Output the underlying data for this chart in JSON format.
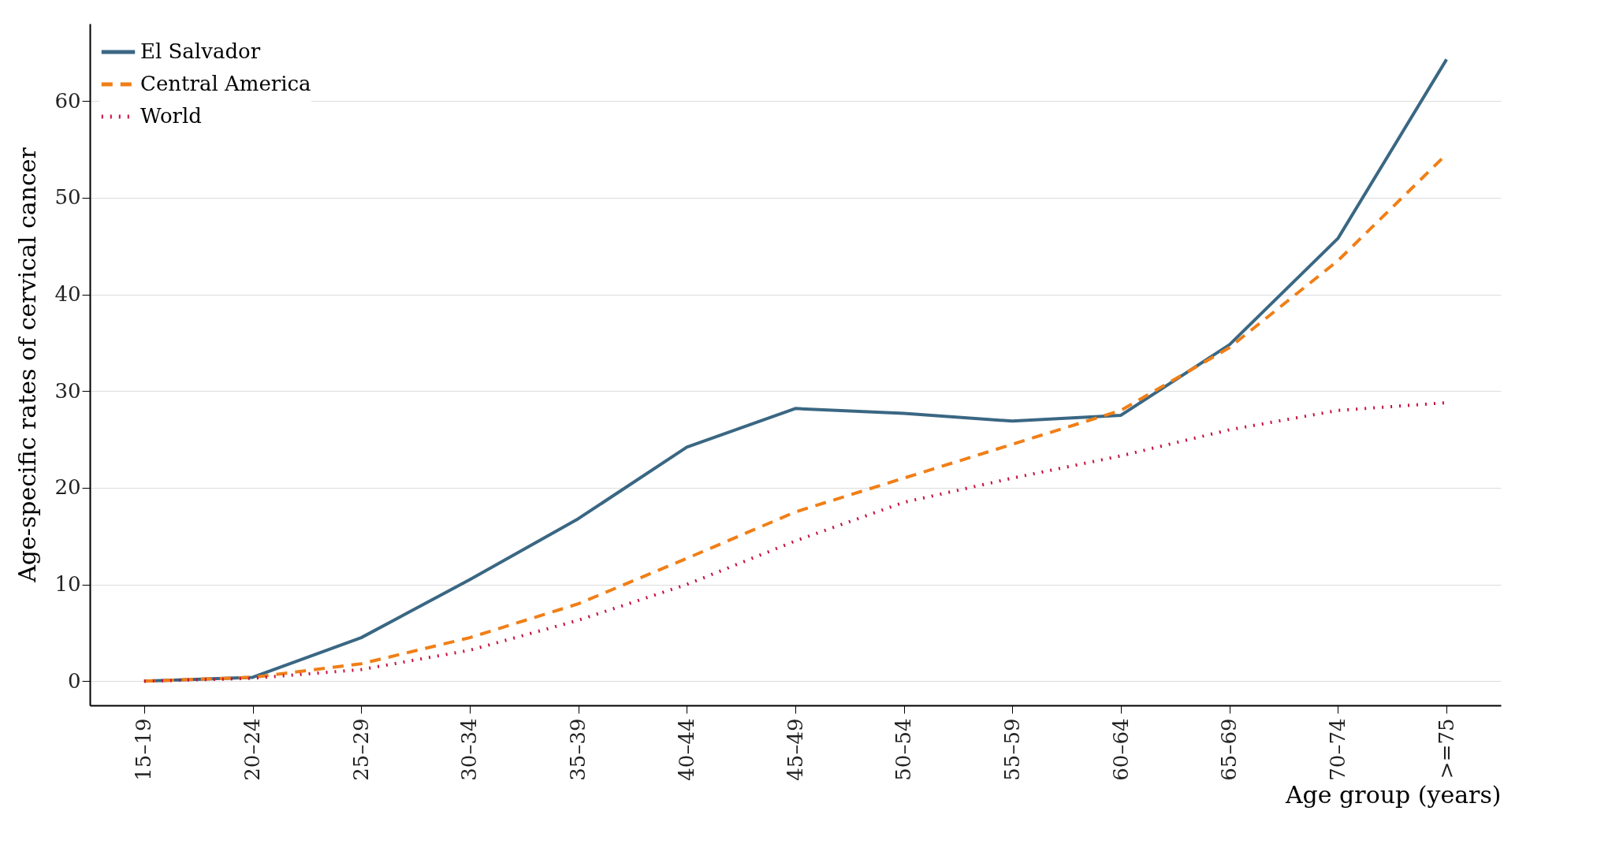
{
  "chart_data": {
    "type": "line",
    "xlabel": "Age group (years)",
    "ylabel": "Age-specific rates of cervical cancer",
    "categories": [
      "15–19",
      "20–24",
      "25–29",
      "30–34",
      "35–39",
      "40–44",
      "45–49",
      "50–54",
      "55–59",
      "60–64",
      "65–69",
      "70–74",
      ">=75"
    ],
    "series": [
      {
        "name": "El Salvador",
        "color": "#3a6783",
        "line_style": "solid",
        "values": [
          0,
          0.4,
          4.5,
          10.5,
          16.8,
          24.2,
          28.2,
          27.7,
          26.9,
          27.5,
          34.8,
          45.8,
          64.3
        ]
      },
      {
        "name": "Central America",
        "color": "#f07f17",
        "line_style": "dashed",
        "values": [
          0,
          0.4,
          1.8,
          4.5,
          8,
          12.7,
          17.5,
          21,
          24.5,
          28,
          34.5,
          43.5,
          54.5
        ]
      },
      {
        "name": "World",
        "color": "#c8103f",
        "line_style": "dotted",
        "values": [
          0,
          0.3,
          1.2,
          3.2,
          6.3,
          10,
          14.5,
          18.5,
          21,
          23.3,
          26,
          28,
          28.8
        ]
      }
    ],
    "ylim": [
      -2.5,
      68
    ],
    "yticks": [
      0,
      10,
      20,
      30,
      40,
      50,
      60
    ],
    "grid": "y",
    "legend": "top left",
    "marker": "none"
  }
}
